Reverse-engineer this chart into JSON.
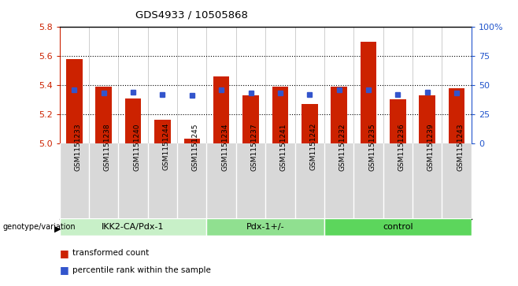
{
  "title": "GDS4933 / 10505868",
  "samples": [
    "GSM1151233",
    "GSM1151238",
    "GSM1151240",
    "GSM1151244",
    "GSM1151245",
    "GSM1151234",
    "GSM1151237",
    "GSM1151241",
    "GSM1151242",
    "GSM1151232",
    "GSM1151235",
    "GSM1151236",
    "GSM1151239",
    "GSM1151243"
  ],
  "transformed_count": [
    5.58,
    5.39,
    5.31,
    5.16,
    5.03,
    5.46,
    5.33,
    5.39,
    5.27,
    5.39,
    5.7,
    5.3,
    5.33,
    5.38
  ],
  "percentile_rank": [
    46,
    43,
    44,
    42,
    41,
    46,
    43,
    43,
    42,
    46,
    46,
    42,
    44,
    43
  ],
  "groups": [
    {
      "label": "IKK2-CA/Pdx-1",
      "start": 0,
      "end": 5,
      "color": "#c8f0c8"
    },
    {
      "label": "Pdx-1+/-",
      "start": 5,
      "end": 9,
      "color": "#90e090"
    },
    {
      "label": "control",
      "start": 9,
      "end": 14,
      "color": "#5cd65c"
    }
  ],
  "ylim_left": [
    5.0,
    5.8
  ],
  "ylim_right": [
    0,
    100
  ],
  "bar_color": "#cc2200",
  "dot_color": "#3355cc",
  "xtick_bg": "#d8d8d8",
  "plot_bg": "#ffffff",
  "yticks_left": [
    5.0,
    5.2,
    5.4,
    5.6,
    5.8
  ],
  "yticks_right": [
    0,
    25,
    50,
    75,
    100
  ],
  "dotted_lines": [
    5.2,
    5.4,
    5.6
  ]
}
